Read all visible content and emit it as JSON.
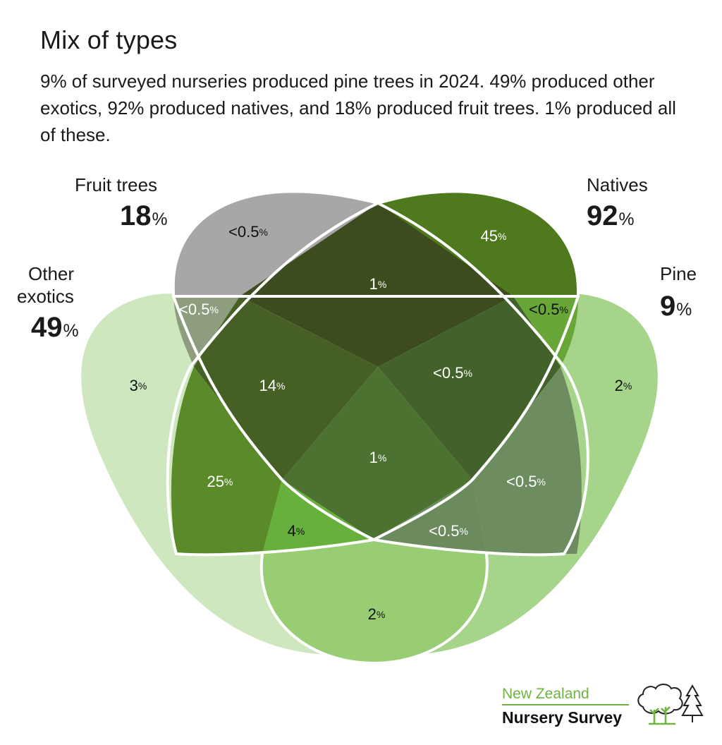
{
  "header": {
    "title": "Mix of types",
    "subtitle": "9% of surveyed nurseries produced pine trees in 2024. 49% produced other exotics, 92% produced natives, and 18% produced fruit trees. 1% produced all of these."
  },
  "sets": {
    "fruit": {
      "name": "Fruit trees",
      "value": "18",
      "unit": "%"
    },
    "natives": {
      "name": "Natives",
      "value": "92",
      "unit": "%"
    },
    "exotics": {
      "name_line1": "Other",
      "name_line2": "exotics",
      "value": "49",
      "unit": "%"
    },
    "pine": {
      "name": "Pine",
      "value": "9",
      "unit": "%"
    }
  },
  "regions": {
    "fruit_only": "<0.5",
    "natives_only": "45",
    "fruit_natives": "1",
    "exotics_fruit": "<0.5",
    "natives_pine": "<0.5",
    "exotics_only": "3",
    "pine_only": "2",
    "exotics_fruit_natives": "14",
    "fruit_natives_pine": "<0.5",
    "all_four": "1",
    "exotics_natives": "25",
    "natives_pine_fruit_side": "<0.5",
    "exotics_natives_pine": "4",
    "natives_pine_exotics_side": "<0.5",
    "exotics_pine": "2",
    "unit": "%"
  },
  "colors": {
    "fruit": "#a8a6a7",
    "natives": "#4e7a1d",
    "exotics": "#cfe7bf",
    "pine": "#a5d48a",
    "dark": "#3c4c1e",
    "stroke": "#ffffff"
  },
  "logo": {
    "line1": "New Zealand",
    "line2": "Nursery Survey"
  }
}
